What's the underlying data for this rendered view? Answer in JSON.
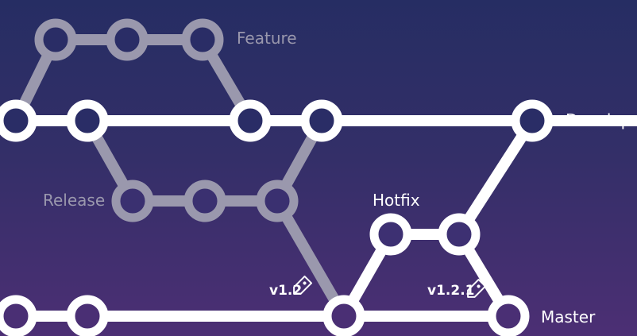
{
  "colors": {
    "background_top": "#262d63",
    "background_bottom": "#4c2f74",
    "active_branch": "#ffffff",
    "muted_branch": "#9a98ad",
    "node_fill": "#2a2d66"
  },
  "branches": {
    "feature": {
      "label": "Feature"
    },
    "develop": {
      "label": "Develop"
    },
    "release": {
      "label": "Release"
    },
    "hotfix": {
      "label": "Hotfix"
    },
    "master": {
      "label": "Master"
    }
  },
  "tags": [
    {
      "label": "v1.2",
      "icon": "tag-icon"
    },
    {
      "label": "v1.2.1",
      "icon": "tag-icon"
    }
  ]
}
